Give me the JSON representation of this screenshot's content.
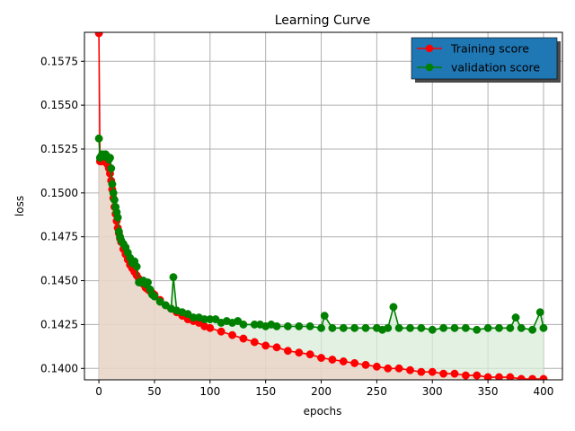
{
  "chart_data": {
    "type": "line",
    "title": "Learning Curve",
    "xlabel": "epochs",
    "ylabel": "loss",
    "xlim": [
      -13,
      417
    ],
    "ylim": [
      0.13935,
      0.15915
    ],
    "x_ticks": [
      0,
      50,
      100,
      150,
      200,
      250,
      300,
      350,
      400
    ],
    "x_tick_labels": [
      "0",
      "50",
      "100",
      "150",
      "200",
      "250",
      "300",
      "350",
      "400"
    ],
    "y_ticks": [
      0.14,
      0.1425,
      0.145,
      0.1475,
      0.15,
      0.1525,
      0.155,
      0.1575
    ],
    "y_tick_labels": [
      "0.1400",
      "0.1425",
      "0.1450",
      "0.1475",
      "0.1500",
      "0.1525",
      "0.1550",
      "0.1575"
    ],
    "grid": true,
    "legend_position": "top-right",
    "series": [
      {
        "name": "Training score",
        "color": "#ff0000",
        "fill_color": "#e8d6c8",
        "x": [
          0,
          1,
          2,
          3,
          4,
          5,
          6,
          7,
          8,
          9,
          10,
          11,
          12,
          13,
          14,
          15,
          16,
          17,
          18,
          19,
          20,
          22,
          24,
          26,
          28,
          30,
          32,
          34,
          36,
          38,
          40,
          42,
          44,
          46,
          48,
          50,
          55,
          60,
          65,
          70,
          75,
          80,
          85,
          90,
          95,
          100,
          110,
          120,
          130,
          140,
          150,
          160,
          170,
          180,
          190,
          200,
          210,
          220,
          230,
          240,
          250,
          260,
          270,
          280,
          290,
          300,
          310,
          320,
          330,
          340,
          350,
          360,
          370,
          380,
          390,
          400
        ],
        "values": [
          0.1591,
          0.1518,
          0.1518,
          0.1518,
          0.1518,
          0.1518,
          0.1518,
          0.1517,
          0.1516,
          0.1514,
          0.1511,
          0.1507,
          0.1502,
          0.1497,
          0.1492,
          0.1488,
          0.1484,
          0.148,
          0.1477,
          0.1474,
          0.1472,
          0.1468,
          0.1465,
          0.1462,
          0.1459,
          0.1457,
          0.1455,
          0.1453,
          0.1451,
          0.1449,
          0.1448,
          0.1446,
          0.1445,
          0.1444,
          0.1443,
          0.1442,
          0.1439,
          0.1436,
          0.1434,
          0.1432,
          0.143,
          0.1428,
          0.1427,
          0.1426,
          0.1424,
          0.1423,
          0.1421,
          0.1419,
          0.1417,
          0.1415,
          0.1413,
          0.1412,
          0.141,
          0.1409,
          0.1408,
          0.1406,
          0.1405,
          0.1404,
          0.1403,
          0.1402,
          0.1401,
          0.14,
          0.14,
          0.1399,
          0.1398,
          0.1398,
          0.1397,
          0.1397,
          0.1396,
          0.1396,
          0.1395,
          0.1395,
          0.1395,
          0.1394,
          0.1394,
          0.1394
        ]
      },
      {
        "name": "validation score",
        "color": "#008000",
        "fill_color": "#d8ecd8",
        "x": [
          0,
          1,
          2,
          3,
          4,
          5,
          6,
          7,
          8,
          9,
          10,
          11,
          12,
          13,
          14,
          15,
          16,
          17,
          18,
          19,
          20,
          22,
          24,
          26,
          28,
          30,
          32,
          34,
          36,
          38,
          40,
          42,
          44,
          46,
          48,
          50,
          55,
          60,
          65,
          67,
          70,
          75,
          80,
          85,
          90,
          95,
          100,
          105,
          110,
          115,
          120,
          125,
          130,
          140,
          145,
          150,
          155,
          160,
          170,
          180,
          190,
          200,
          203,
          210,
          220,
          230,
          240,
          250,
          255,
          260,
          265,
          270,
          280,
          290,
          300,
          310,
          320,
          330,
          340,
          350,
          360,
          370,
          375,
          380,
          390,
          397,
          400
        ],
        "values": [
          0.1531,
          0.152,
          0.1521,
          0.1522,
          0.1521,
          0.1521,
          0.1522,
          0.1521,
          0.152,
          0.1519,
          0.152,
          0.1514,
          0.1505,
          0.15,
          0.1496,
          0.1492,
          0.1489,
          0.1486,
          0.1478,
          0.1475,
          0.1473,
          0.1471,
          0.1469,
          0.1466,
          0.1463,
          0.146,
          0.1461,
          0.1458,
          0.1449,
          0.1449,
          0.145,
          0.1448,
          0.1449,
          0.1445,
          0.1442,
          0.1441,
          0.1438,
          0.1436,
          0.1434,
          0.1452,
          0.1433,
          0.1432,
          0.1431,
          0.1429,
          0.1429,
          0.1428,
          0.1428,
          0.1428,
          0.1426,
          0.1427,
          0.1426,
          0.1427,
          0.1425,
          0.1425,
          0.1425,
          0.1424,
          0.1425,
          0.1424,
          0.1424,
          0.1424,
          0.1424,
          0.1423,
          0.143,
          0.1423,
          0.1423,
          0.1423,
          0.1423,
          0.1423,
          0.1422,
          0.1423,
          0.1435,
          0.1423,
          0.1423,
          0.1423,
          0.1422,
          0.1423,
          0.1423,
          0.1423,
          0.1422,
          0.1423,
          0.1423,
          0.1423,
          0.1429,
          0.1423,
          0.1422,
          0.1432,
          0.1423
        ]
      }
    ]
  }
}
